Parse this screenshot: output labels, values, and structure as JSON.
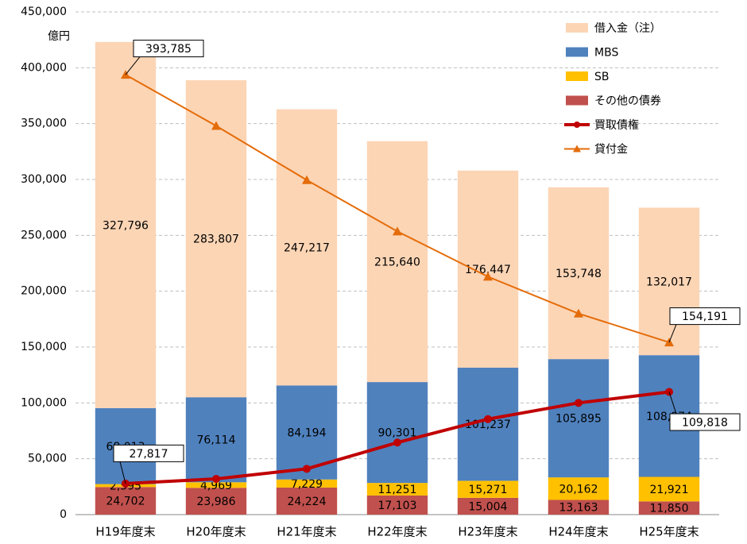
{
  "chart_data": {
    "type": "bar",
    "stacked": true,
    "y_unit": "億円",
    "categories": [
      "H19年度末",
      "H20年度末",
      "H21年度末",
      "H22年度末",
      "H23年度末",
      "H24年度末",
      "H25年度末"
    ],
    "ylim": [
      0,
      450000
    ],
    "yticks": [
      0,
      {
        "value": 50000,
        "label": "50,000"
      },
      {
        "value": 100000,
        "label": "100,000"
      },
      {
        "value": 150000,
        "label": "150,000"
      },
      {
        "value": 200000,
        "label": "200,000"
      },
      {
        "value": 250000,
        "label": "250,000"
      },
      {
        "value": 300000,
        "label": "300,000"
      },
      {
        "value": 350000,
        "label": "350,000"
      },
      {
        "value": 400000,
        "label": "400,000"
      },
      {
        "value": 450000,
        "label": "450,000"
      }
    ],
    "grid": true,
    "legend": "top-right",
    "series": [
      {
        "name": "借入金（注）",
        "type": "bar",
        "color": "#fcd5b5",
        "values": [
          327796,
          283807,
          247217,
          215640,
          176447,
          153748,
          132017
        ],
        "value_labels": [
          "327,796",
          "283,807",
          "247,217",
          "215,640",
          "176,447",
          "153,748",
          "132,017"
        ]
      },
      {
        "name": "MBS",
        "type": "bar",
        "color": "#4f81bd",
        "values": [
          68013,
          76114,
          84194,
          90301,
          101237,
          105895,
          108974
        ],
        "value_labels": [
          "68,013",
          "76,114",
          "84,194",
          "90,301",
          "101,237",
          "105,895",
          "108,974"
        ]
      },
      {
        "name": "SB",
        "type": "bar",
        "color": "#ffc000",
        "values": [
          2595,
          4969,
          7229,
          11251,
          15271,
          20162,
          21921
        ],
        "value_labels": [
          "2,595",
          "4,969",
          "7,229",
          "11,251",
          "15,271",
          "20,162",
          "21,921"
        ]
      },
      {
        "name": "その他の債券",
        "type": "bar",
        "color": "#c0504d",
        "values": [
          24702,
          23986,
          24224,
          17103,
          15004,
          13163,
          11850
        ],
        "value_labels": [
          "24,702",
          "23,986",
          "24,224",
          "17,103",
          "15,004",
          "13,163",
          "11,850"
        ]
      },
      {
        "name": "買取債権",
        "type": "line",
        "color": "#c00000",
        "marker": "circle",
        "line_width": 4,
        "values": [
          27817,
          32000,
          41000,
          64500,
          85500,
          100000,
          109818
        ],
        "value_labels": [
          "27,817",
          null,
          null,
          null,
          null,
          null,
          "109,818"
        ]
      },
      {
        "name": "貸付金",
        "type": "line",
        "color": "#e46c0a",
        "marker": "triangle",
        "line_width": 2,
        "values": [
          393785,
          348000,
          299500,
          253500,
          213000,
          180000,
          154191
        ],
        "value_labels": [
          "393,785",
          null,
          null,
          null,
          null,
          null,
          "154,191"
        ]
      }
    ]
  }
}
